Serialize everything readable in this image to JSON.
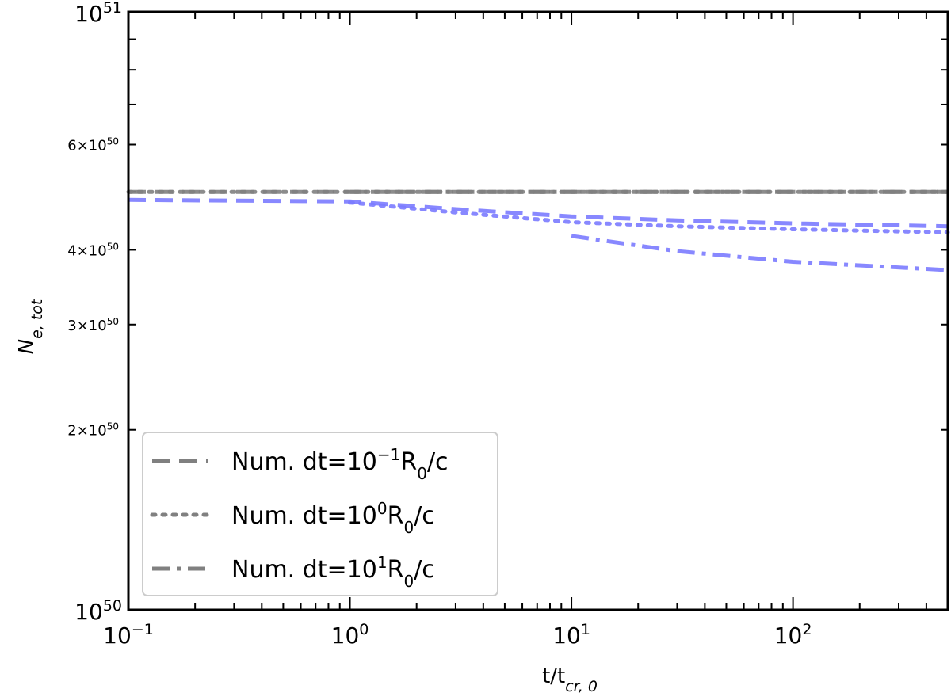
{
  "chart_data": {
    "type": "line",
    "xscale": "log",
    "yscale": "log",
    "xlim": [
      0.1,
      500
    ],
    "ylim": [
      1e+50,
      1e+51
    ],
    "xlabel": {
      "base": "t/t",
      "sub": "cr, 0"
    },
    "ylabel": {
      "base": "N",
      "sub": "e, tot"
    },
    "x_major_ticks": [
      {
        "value": 0.1,
        "base": "10",
        "exp": "−1"
      },
      {
        "value": 1,
        "base": "10",
        "exp": "0"
      },
      {
        "value": 10,
        "base": "10",
        "exp": "1"
      },
      {
        "value": 100,
        "base": "10",
        "exp": "2"
      }
    ],
    "y_major_ticks": [
      {
        "value": 1e+50,
        "base": "10",
        "exp": "50"
      },
      {
        "value": 1e+51,
        "base": "10",
        "exp": "51"
      }
    ],
    "y_minor_labeled": [
      {
        "value": 2e+50,
        "mant": "2",
        "exp": "50"
      },
      {
        "value": 3e+50,
        "mant": "3",
        "exp": "50"
      },
      {
        "value": 4e+50,
        "mant": "4",
        "exp": "50"
      },
      {
        "value": 6e+50,
        "mant": "6",
        "exp": "50"
      }
    ],
    "series": [
      {
        "style": "dashed",
        "color": "#808080",
        "x": [
          0.1,
          1,
          10,
          100,
          500
        ],
        "y": [
          5e+50,
          5e+50,
          5e+50,
          5e+50,
          5e+50
        ]
      },
      {
        "style": "dotted",
        "color": "#808080",
        "x": [
          0.1,
          1,
          10,
          100,
          500
        ],
        "y": [
          5e+50,
          5e+50,
          5e+50,
          5e+50,
          5e+50
        ]
      },
      {
        "style": "dashdot",
        "color": "#808080",
        "x": [
          1,
          10,
          100,
          500
        ],
        "y": [
          5e+50,
          5e+50,
          5e+50,
          5e+50
        ]
      },
      {
        "style": "dashed",
        "color": "#7b7bff",
        "x": [
          0.1,
          1,
          3,
          10,
          30,
          100,
          500
        ],
        "y": [
          4.85e+50,
          4.82e+50,
          4.68e+50,
          4.55e+50,
          4.48e+50,
          4.43e+50,
          4.38e+50
        ]
      },
      {
        "style": "dotted",
        "color": "#7b7bff",
        "x": [
          1,
          3,
          10,
          30,
          100,
          500
        ],
        "y": [
          4.8e+50,
          4.62e+50,
          4.45e+50,
          4.38e+50,
          4.33e+50,
          4.28e+50
        ]
      },
      {
        "style": "dashdot",
        "color": "#7b7bff",
        "x": [
          10,
          30,
          100,
          500
        ],
        "y": [
          4.22e+50,
          3.98e+50,
          3.82e+50,
          3.7e+50
        ]
      }
    ],
    "legend": {
      "location": "lower-left",
      "entries": [
        {
          "style": "dashed",
          "color": "#808080",
          "label": "Num. dt=10",
          "exp": "−1",
          "tail": "R",
          "sub": "0",
          "end": "/c"
        },
        {
          "style": "dotted",
          "color": "#808080",
          "label": "Num. dt=10",
          "exp": "0",
          "tail": "R",
          "sub": "0",
          "end": "/c"
        },
        {
          "style": "dashdot",
          "color": "#808080",
          "label": "Num. dt=10",
          "exp": "1",
          "tail": "R",
          "sub": "0",
          "end": "/c"
        }
      ]
    }
  }
}
